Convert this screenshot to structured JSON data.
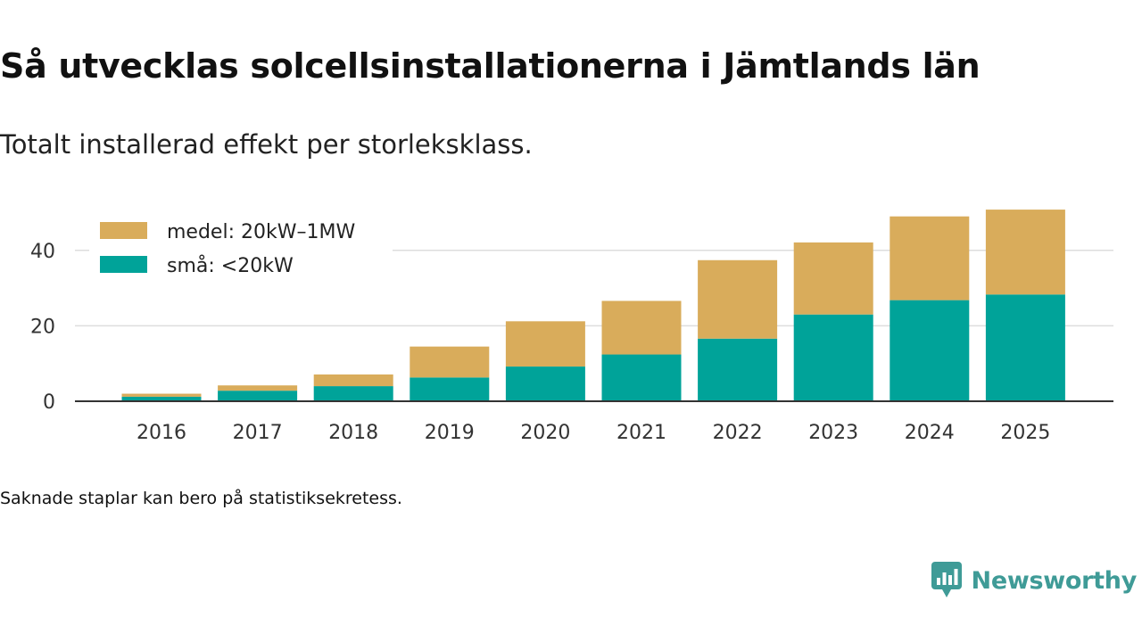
{
  "title": "Så utvecklas solcellsinstallationerna i Jämtlands län",
  "subtitle": "Totalt installerad effekt per storleksklass.",
  "note": "Saknade staplar kan bero på statistiksekretess.",
  "brand": {
    "name": "Newsworthy",
    "icon": "newsworthy-logo-icon",
    "color": "#3f9b97"
  },
  "chart_data": {
    "type": "bar",
    "stacked": true,
    "title": "Så utvecklas solcellsinstallationerna i Jämtlands län",
    "subtitle": "Totalt installerad effekt per storleksklass.",
    "xlabel": "",
    "ylabel": "",
    "categories": [
      "2016",
      "2017",
      "2018",
      "2019",
      "2020",
      "2021",
      "2022",
      "2023",
      "2024",
      "2025"
    ],
    "series": [
      {
        "name": "små: <20kW",
        "color": "#00a399",
        "values": [
          1.2,
          2.8,
          4.0,
          6.3,
          9.2,
          12.4,
          16.6,
          23.0,
          26.8,
          28.3
        ]
      },
      {
        "name": "medel: 20kW–1MW",
        "color": "#d9ac5b",
        "values": [
          0.8,
          1.4,
          3.1,
          8.2,
          12.0,
          14.2,
          20.8,
          19.1,
          22.2,
          22.5
        ]
      }
    ],
    "yticks": [
      0,
      20,
      40
    ],
    "ylim": [
      0,
      52
    ],
    "grid": true,
    "legend": "top-left"
  }
}
